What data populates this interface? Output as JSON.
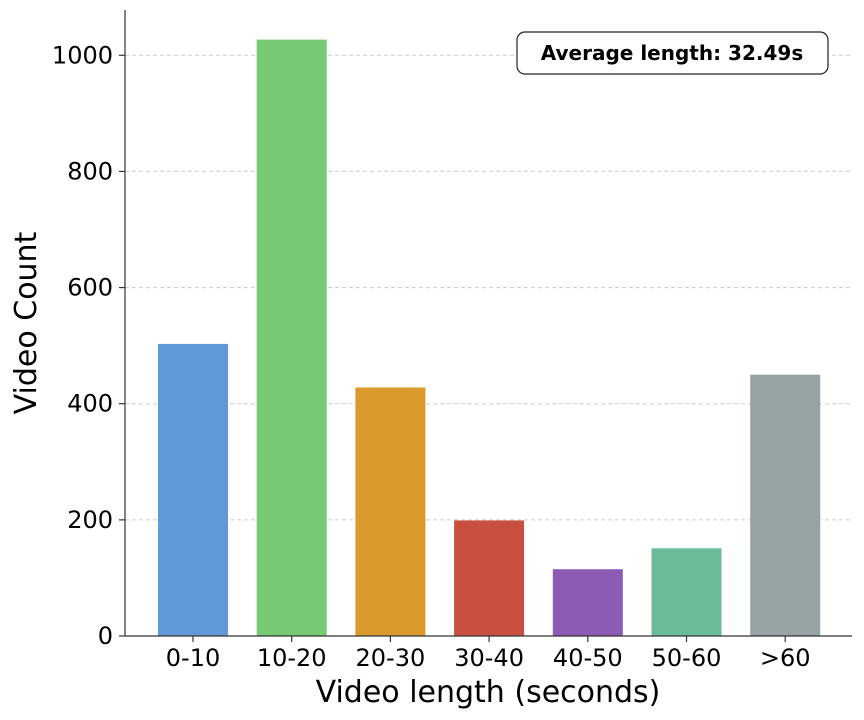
{
  "chart_data": {
    "type": "bar",
    "categories": [
      "0-10",
      "10-20",
      "20-30",
      "30-40",
      "40-50",
      "50-60",
      ">60"
    ],
    "values": [
      503,
      1027,
      428,
      199,
      115,
      151,
      450
    ],
    "colors": [
      "#6198d8",
      "#78c974",
      "#dc9a2e",
      "#c94f40",
      "#8c5bb3",
      "#6abb9a",
      "#97a3a2"
    ],
    "xlabel": "Video length (seconds)",
    "ylabel": "Video Count",
    "ylim": [
      0,
      1078
    ],
    "yticks": [
      0,
      200,
      400,
      600,
      800,
      1000
    ],
    "grid": "horizontal dashed",
    "annotation": "Average length: 32.49s",
    "annotation_position": "top-right"
  }
}
